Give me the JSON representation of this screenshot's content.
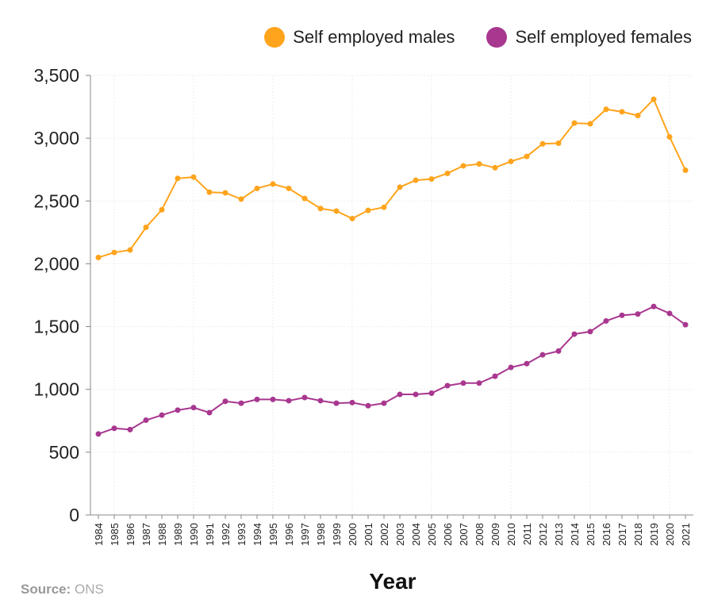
{
  "chart_data": {
    "type": "line",
    "title": "",
    "xlabel": "Year",
    "ylabel": "",
    "ylim": [
      0,
      3500
    ],
    "yticks": [
      "0",
      "500",
      "1,000",
      "1,500",
      "2,000",
      "2,500",
      "3,000",
      "3,500"
    ],
    "grid": true,
    "legend": "top-right",
    "x": [
      1984,
      1985,
      1986,
      1987,
      1988,
      1989,
      1990,
      1991,
      1992,
      1993,
      1994,
      1995,
      1996,
      1997,
      1998,
      1999,
      2000,
      2001,
      2002,
      2003,
      2004,
      2005,
      2006,
      2007,
      2008,
      2009,
      2010,
      2011,
      2012,
      2013,
      2014,
      2015,
      2016,
      2017,
      2018,
      2019,
      2020,
      2021
    ],
    "series": [
      {
        "name": "Self employed males",
        "color": "#ffa41c",
        "values": [
          2050,
          2090,
          2110,
          2290,
          2430,
          2680,
          2690,
          2570,
          2565,
          2515,
          2600,
          2635,
          2600,
          2520,
          2440,
          2420,
          2360,
          2425,
          2450,
          2610,
          2665,
          2675,
          2720,
          2780,
          2795,
          2765,
          2815,
          2855,
          2955,
          2960,
          3120,
          3115,
          3230,
          3210,
          3180,
          3310,
          3010,
          2745
        ]
      },
      {
        "name": "Self employed females",
        "color": "#a8378f",
        "values": [
          645,
          690,
          680,
          755,
          795,
          835,
          855,
          815,
          905,
          890,
          920,
          920,
          910,
          935,
          910,
          890,
          895,
          870,
          890,
          960,
          960,
          970,
          1030,
          1050,
          1050,
          1105,
          1175,
          1205,
          1275,
          1305,
          1440,
          1460,
          1545,
          1590,
          1600,
          1660,
          1605,
          1515
        ]
      }
    ]
  },
  "source": {
    "label": "Source:",
    "value": "ONS"
  }
}
